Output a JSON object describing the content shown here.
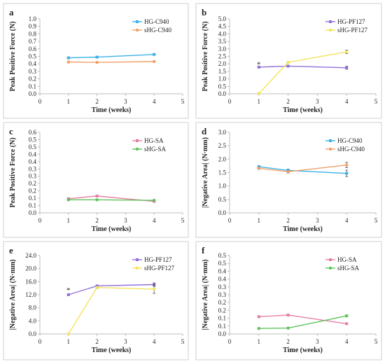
{
  "colors": {
    "HG-C940": "#39b2e6",
    "sHG-C940": "#f0a067",
    "HG-PF127": "#9370db",
    "sHG-PF127": "#f2e35a",
    "HG-SA": "#e87fa0",
    "sHG-SA": "#5cc45c",
    "axis": "#bfbfbf",
    "text": "#222222"
  },
  "chart_data": [
    {
      "type": "line",
      "panel_label": "a",
      "xlabel": "Time (weeks)",
      "ylabel": "Peak Positive Force (N)",
      "xlim": [
        0,
        5
      ],
      "xticks": [
        0,
        1,
        2,
        3,
        4,
        5
      ],
      "ylim": [
        0,
        1.0
      ],
      "yticks": [
        "0.0",
        "0.1",
        "0.2",
        "0.3",
        "0.4",
        "0.5",
        "0.6",
        "0.7",
        "0.8",
        "0.9",
        "1.0"
      ],
      "legend_position": "top-right",
      "series": [
        {
          "name": "HG-C940",
          "x": [
            1,
            2,
            4
          ],
          "y": [
            0.48,
            0.49,
            0.525
          ],
          "err": [
            0.005,
            0.01,
            0.01
          ]
        },
        {
          "name": "sHG-C940",
          "x": [
            1,
            2,
            4
          ],
          "y": [
            0.425,
            0.42,
            0.43
          ],
          "err": [
            0.005,
            0.005,
            0.005
          ]
        }
      ],
      "annotations": []
    },
    {
      "type": "line",
      "panel_label": "b",
      "xlabel": "Time (weeks)",
      "ylabel": "Peak Positive Force (N)",
      "xlim": [
        0,
        5
      ],
      "xticks": [
        0,
        1,
        2,
        3,
        4,
        5
      ],
      "ylim": [
        0,
        5.0
      ],
      "yticks": [
        "0.0",
        "0.5",
        "1.0",
        "1.5",
        "2.0",
        "2.5",
        "3.0",
        "3.5",
        "4.0",
        "4.5",
        "5.0"
      ],
      "legend_position": "top-right",
      "series": [
        {
          "name": "HG-PF127",
          "x": [
            1,
            2,
            4
          ],
          "y": [
            1.78,
            1.85,
            1.74
          ],
          "err": [
            0.05,
            0.05,
            0.1
          ]
        },
        {
          "name": "sHG-PF127",
          "x": [
            1,
            2,
            4
          ],
          "y": [
            0.02,
            2.1,
            2.8
          ],
          "err": [
            0.02,
            0.05,
            0.12
          ]
        }
      ],
      "annotations": [
        {
          "text": "*",
          "x": 1,
          "y": 1.95
        }
      ]
    },
    {
      "type": "line",
      "panel_label": "c",
      "xlabel": "Time (weeks)",
      "ylabel": "Peak Positive Force (N)",
      "xlim": [
        0,
        5
      ],
      "xticks": [
        0,
        1,
        2,
        3,
        4,
        5
      ],
      "ylim": [
        0,
        0.6
      ],
      "yticks": [
        "0.0",
        "0.1",
        "0.1",
        "0.2",
        "0.2",
        "0.3",
        "0.3",
        "0.4",
        "0.4",
        "0.5",
        "0.5",
        "0.6"
      ],
      "legend_position": "top-right",
      "series": [
        {
          "name": "HG-SA",
          "x": [
            1,
            2,
            4
          ],
          "y": [
            0.105,
            0.125,
            0.085
          ],
          "err": [
            0.004,
            0.004,
            0.004
          ]
        },
        {
          "name": "sHG-SA",
          "x": [
            1,
            2,
            4
          ],
          "y": [
            0.097,
            0.097,
            0.093
          ],
          "err": [
            0.004,
            0.004,
            0.004
          ]
        }
      ],
      "annotations": []
    },
    {
      "type": "line",
      "panel_label": "d",
      "xlabel": "Time (weeks)",
      "ylabel": "|Negative Area| (N·mm)",
      "xlim": [
        0,
        5
      ],
      "xticks": [
        0,
        1,
        2,
        3,
        4,
        5
      ],
      "ylim": [
        0,
        3.0
      ],
      "yticks": [
        "0.0",
        "0.5",
        "1.0",
        "1.5",
        "2.0",
        "2.5",
        "3.0"
      ],
      "legend_position": "top-right",
      "series": [
        {
          "name": "HG-C940",
          "x": [
            1,
            2,
            4
          ],
          "y": [
            1.72,
            1.58,
            1.47
          ],
          "err": [
            0.04,
            0.05,
            0.12
          ]
        },
        {
          "name": "sHG-C940",
          "x": [
            1,
            2,
            4
          ],
          "y": [
            1.66,
            1.53,
            1.78
          ],
          "err": [
            0.04,
            0.05,
            0.1
          ]
        }
      ],
      "annotations": []
    },
    {
      "type": "line",
      "panel_label": "e",
      "xlabel": "Time (weeks)",
      "ylabel": "|Negative Area| (N·mm)",
      "xlim": [
        0,
        5
      ],
      "xticks": [
        0,
        1,
        2,
        3,
        4,
        5
      ],
      "ylim": [
        0,
        24.0
      ],
      "yticks": [
        "0.0",
        "4.0",
        "8.0",
        "12.0",
        "16.0",
        "20.0",
        "24.0"
      ],
      "legend_position": "top-right",
      "series": [
        {
          "name": "HG-PF127",
          "x": [
            1,
            2,
            4
          ],
          "y": [
            12.0,
            14.7,
            15.1
          ],
          "err": [
            0.3,
            0.3,
            0.5
          ]
        },
        {
          "name": "sHG-PF127",
          "x": [
            1,
            2,
            4
          ],
          "y": [
            0.0,
            14.2,
            13.7
          ],
          "err": [
            0.0,
            0.3,
            1.3
          ]
        }
      ],
      "annotations": [
        {
          "text": "*",
          "x": 1,
          "y": 13.3
        }
      ]
    },
    {
      "type": "line",
      "panel_label": "f",
      "xlabel": "Time (weeks)",
      "ylabel": "|Negative Area| (N·mm)",
      "xlim": [
        0,
        5
      ],
      "xticks": [
        0,
        1,
        2,
        3,
        4,
        5
      ],
      "ylim": [
        0,
        0.5
      ],
      "yticks": [
        "0.0",
        "0.1",
        "0.1",
        "0.2",
        "0.2",
        "0.3",
        "0.3",
        "0.4",
        "0.4",
        "0.5",
        "0.5"
      ],
      "legend_position": "top-right",
      "series": [
        {
          "name": "HG-SA",
          "x": [
            1,
            2,
            4
          ],
          "y": [
            0.11,
            0.12,
            0.065
          ],
          "err": [
            0.004,
            0.004,
            0.004
          ]
        },
        {
          "name": "sHG-SA",
          "x": [
            1,
            2,
            4
          ],
          "y": [
            0.035,
            0.037,
            0.115
          ],
          "err": [
            0.003,
            0.003,
            0.006
          ]
        }
      ],
      "annotations": []
    }
  ]
}
